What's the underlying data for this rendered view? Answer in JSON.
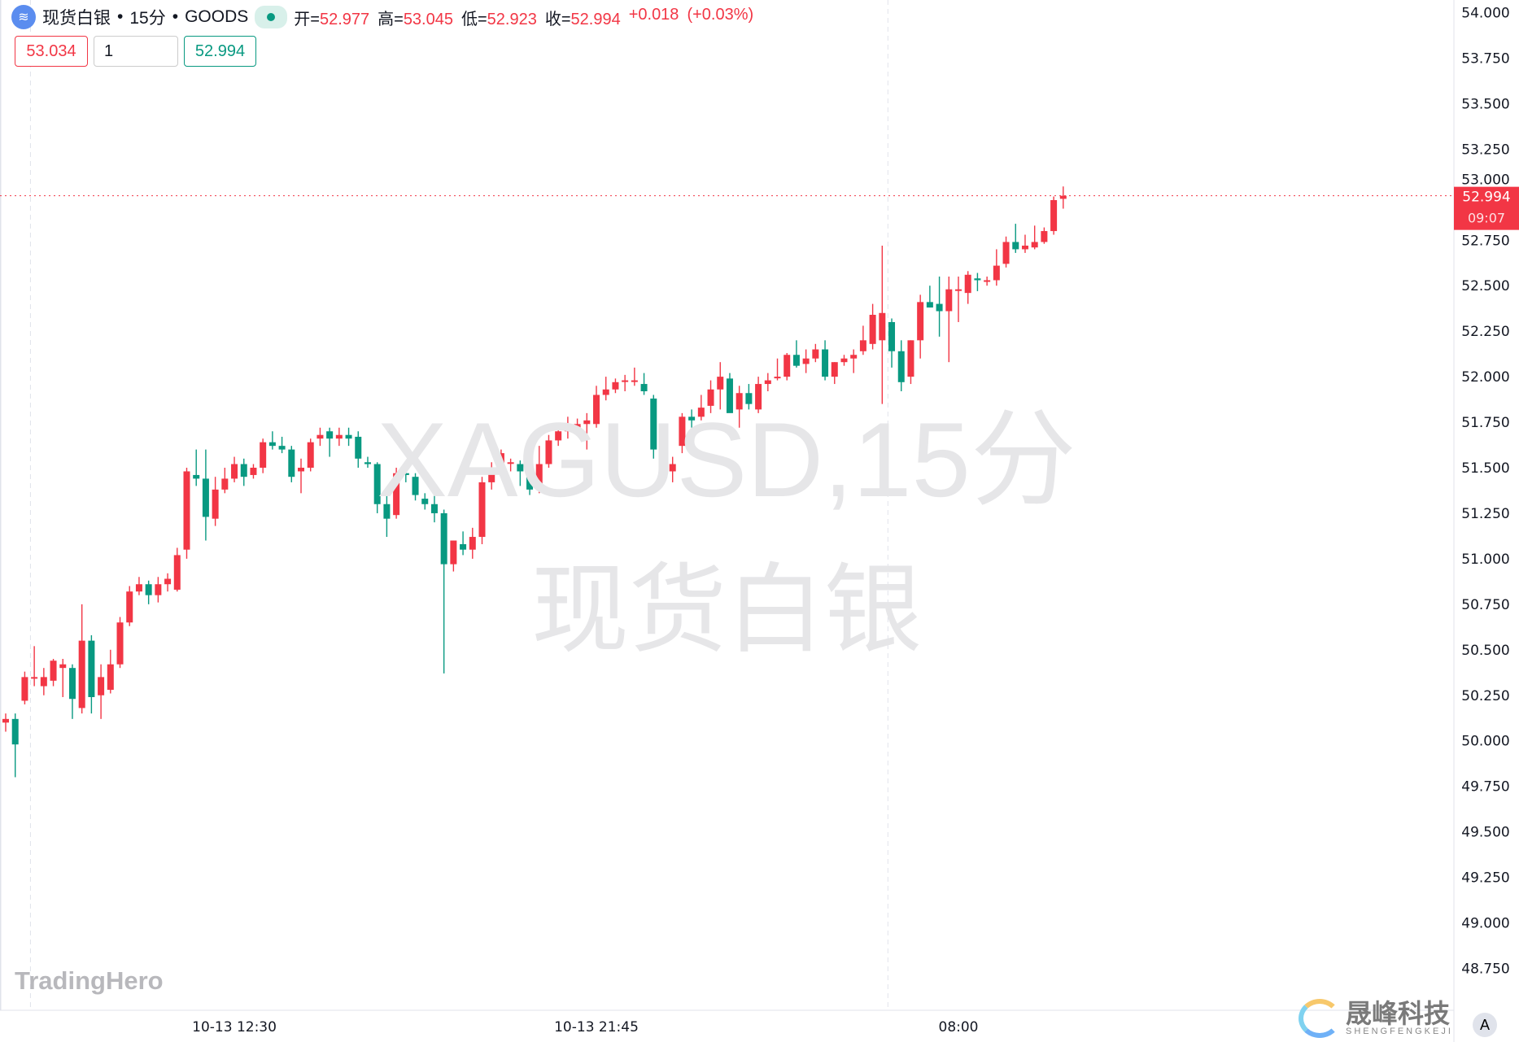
{
  "header": {
    "symbol": "现货白银",
    "interval": "15分",
    "exchange": "GOODS",
    "sep": "•",
    "open_label": "开=",
    "open": "52.977",
    "high_label": "高=",
    "high": "53.045",
    "low_label": "低=",
    "low": "52.923",
    "close_label": "收=",
    "close": "52.994",
    "change": "+0.018",
    "change_pct": "(+0.03%)"
  },
  "trade": {
    "sell": "53.034",
    "qty": "1",
    "buy": "52.994"
  },
  "watermark": {
    "line1": "XAGUSD,15分",
    "line2": "现货白银"
  },
  "logo": "TradingHero",
  "brand": {
    "cn": "晟峰科技",
    "en": "SHENGFENGKEJI"
  },
  "auto_button": "A",
  "colors": {
    "up": "#f23645",
    "down": "#089981"
  },
  "chart_data": {
    "type": "candlestick",
    "ylim": [
      48.6,
      54.0
    ],
    "yticks": [
      "54.000",
      "53.750",
      "53.500",
      "53.250",
      "53.000",
      "52.750",
      "52.500",
      "52.250",
      "52.000",
      "51.750",
      "51.500",
      "51.250",
      "51.000",
      "50.750",
      "50.500",
      "50.250",
      "50.000",
      "49.750",
      "49.500",
      "49.250",
      "49.000",
      "48.750"
    ],
    "xticks": [
      {
        "index": 24,
        "label": "10-13 12:30"
      },
      {
        "index": 62,
        "label": "10-13 21:45"
      },
      {
        "index": 100,
        "label": "08:00"
      }
    ],
    "session_breaks": [
      2,
      92
    ],
    "last_price": {
      "value": "52.994",
      "countdown": "09:07"
    },
    "ohlc": [
      [
        50.1,
        50.15,
        50.05,
        50.12
      ],
      [
        50.12,
        50.15,
        49.8,
        49.98
      ],
      [
        50.22,
        50.38,
        50.2,
        50.35
      ],
      [
        50.35,
        50.52,
        50.3,
        50.35
      ],
      [
        50.3,
        50.4,
        50.25,
        50.35
      ],
      [
        50.33,
        50.45,
        50.3,
        50.44
      ],
      [
        50.4,
        50.45,
        50.24,
        50.42
      ],
      [
        50.4,
        50.42,
        50.12,
        50.23
      ],
      [
        50.18,
        50.75,
        50.15,
        50.55
      ],
      [
        50.55,
        50.58,
        50.15,
        50.24
      ],
      [
        50.25,
        50.42,
        50.12,
        50.35
      ],
      [
        50.28,
        50.5,
        50.26,
        50.42
      ],
      [
        50.42,
        50.68,
        50.4,
        50.65
      ],
      [
        50.65,
        50.85,
        50.63,
        50.82
      ],
      [
        50.82,
        50.9,
        50.8,
        50.86
      ],
      [
        50.86,
        50.88,
        50.75,
        50.8
      ],
      [
        50.8,
        50.9,
        50.76,
        50.86
      ],
      [
        50.86,
        50.92,
        50.82,
        50.89
      ],
      [
        50.83,
        51.06,
        50.82,
        51.02
      ],
      [
        51.05,
        51.5,
        51.0,
        51.48
      ],
      [
        51.46,
        51.6,
        51.4,
        51.44
      ],
      [
        51.44,
        51.6,
        51.1,
        51.23
      ],
      [
        51.22,
        51.45,
        51.18,
        51.38
      ],
      [
        51.38,
        51.5,
        51.36,
        51.44
      ],
      [
        51.44,
        51.56,
        51.42,
        51.52
      ],
      [
        51.52,
        51.55,
        51.4,
        51.45
      ],
      [
        51.46,
        51.52,
        51.44,
        51.5
      ],
      [
        51.5,
        51.66,
        51.47,
        51.64
      ],
      [
        51.64,
        51.7,
        51.6,
        51.62
      ],
      [
        51.62,
        51.67,
        51.58,
        51.6
      ],
      [
        51.6,
        51.62,
        51.42,
        51.45
      ],
      [
        51.48,
        51.55,
        51.36,
        51.5
      ],
      [
        51.5,
        51.66,
        51.48,
        51.64
      ],
      [
        51.66,
        51.72,
        51.62,
        51.68
      ],
      [
        51.7,
        51.72,
        51.56,
        51.66
      ],
      [
        51.66,
        51.72,
        51.62,
        51.68
      ],
      [
        51.68,
        51.72,
        51.62,
        51.66
      ],
      [
        51.67,
        51.7,
        51.5,
        51.55
      ],
      [
        51.53,
        51.56,
        51.5,
        51.52
      ],
      [
        51.52,
        51.53,
        51.25,
        51.3
      ],
      [
        51.3,
        51.35,
        51.12,
        51.22
      ],
      [
        51.24,
        51.5,
        51.22,
        51.47
      ],
      [
        51.47,
        51.5,
        51.42,
        51.46
      ],
      [
        51.45,
        51.47,
        51.32,
        51.35
      ],
      [
        51.33,
        51.36,
        51.27,
        51.3
      ],
      [
        51.3,
        51.36,
        51.2,
        51.25
      ],
      [
        51.25,
        51.27,
        50.37,
        50.97
      ],
      [
        50.97,
        51.1,
        50.93,
        51.1
      ],
      [
        51.08,
        51.15,
        51.02,
        51.05
      ],
      [
        51.05,
        51.17,
        51.0,
        51.12
      ],
      [
        51.12,
        51.45,
        51.08,
        51.42
      ],
      [
        51.42,
        51.53,
        51.38,
        51.5
      ],
      [
        51.5,
        51.6,
        51.45,
        51.58
      ],
      [
        51.53,
        51.55,
        51.48,
        51.53
      ],
      [
        51.52,
        51.54,
        51.4,
        51.48
      ],
      [
        51.5,
        51.55,
        51.35,
        51.38
      ],
      [
        51.38,
        51.62,
        51.36,
        51.52
      ],
      [
        51.52,
        51.68,
        51.5,
        51.65
      ],
      [
        51.65,
        51.73,
        51.62,
        51.7
      ],
      [
        51.7,
        51.78,
        51.66,
        51.72
      ],
      [
        51.72,
        51.77,
        51.68,
        51.74
      ],
      [
        51.74,
        51.8,
        51.6,
        51.76
      ],
      [
        51.74,
        51.95,
        51.72,
        51.9
      ],
      [
        51.9,
        52.0,
        51.87,
        51.93
      ],
      [
        51.93,
        51.99,
        51.91,
        51.97
      ],
      [
        51.98,
        52.01,
        51.92,
        51.98
      ],
      [
        51.98,
        52.05,
        51.95,
        51.98
      ],
      [
        51.96,
        52.02,
        51.9,
        51.92
      ],
      [
        51.88,
        51.9,
        51.55,
        51.6
      ],
      [
        51.6,
        51.62,
        51.45,
        51.5
      ],
      [
        51.48,
        51.56,
        51.42,
        51.52
      ],
      [
        51.62,
        51.8,
        51.58,
        51.78
      ],
      [
        51.78,
        51.82,
        51.72,
        51.76
      ],
      [
        51.78,
        51.9,
        51.76,
        51.83
      ],
      [
        51.84,
        51.98,
        51.8,
        51.93
      ],
      [
        51.93,
        52.08,
        51.82,
        52.0
      ],
      [
        51.99,
        52.02,
        51.84,
        51.8
      ],
      [
        51.82,
        51.95,
        51.72,
        51.91
      ],
      [
        51.91,
        51.96,
        51.82,
        51.85
      ],
      [
        51.82,
        52.0,
        51.8,
        51.96
      ],
      [
        51.96,
        52.02,
        51.92,
        51.98
      ],
      [
        52.0,
        52.1,
        51.98,
        52.0
      ],
      [
        52.0,
        52.13,
        51.98,
        52.12
      ],
      [
        52.12,
        52.2,
        52.05,
        52.06
      ],
      [
        52.07,
        52.15,
        52.02,
        52.1
      ],
      [
        52.1,
        52.18,
        52.08,
        52.15
      ],
      [
        52.15,
        52.2,
        51.98,
        52.0
      ],
      [
        52.0,
        52.08,
        51.96,
        52.08
      ],
      [
        52.08,
        52.12,
        52.06,
        52.1
      ],
      [
        52.1,
        52.15,
        52.02,
        52.12
      ],
      [
        52.14,
        52.28,
        52.12,
        52.2
      ],
      [
        52.18,
        52.4,
        52.15,
        52.34
      ],
      [
        52.2,
        52.72,
        51.85,
        52.35
      ],
      [
        52.3,
        52.32,
        52.05,
        52.14
      ],
      [
        52.14,
        52.2,
        51.92,
        51.97
      ],
      [
        52.0,
        52.2,
        51.96,
        52.2
      ],
      [
        52.2,
        52.45,
        52.1,
        52.41
      ],
      [
        52.41,
        52.5,
        52.38,
        52.38
      ],
      [
        52.4,
        52.55,
        52.22,
        52.36
      ],
      [
        52.36,
        52.55,
        52.08,
        52.48
      ],
      [
        52.48,
        52.55,
        52.3,
        52.48
      ],
      [
        52.46,
        52.58,
        52.4,
        52.56
      ],
      [
        52.54,
        52.57,
        52.47,
        52.53
      ],
      [
        52.53,
        52.55,
        52.5,
        52.53
      ],
      [
        52.53,
        52.7,
        52.5,
        52.61
      ],
      [
        52.62,
        52.77,
        52.6,
        52.74
      ],
      [
        52.74,
        52.84,
        52.68,
        52.7
      ],
      [
        52.7,
        52.78,
        52.68,
        52.72
      ],
      [
        52.71,
        52.83,
        52.7,
        52.74
      ],
      [
        52.74,
        52.82,
        52.73,
        52.8
      ],
      [
        52.8,
        52.99,
        52.78,
        52.97
      ],
      [
        52.977,
        53.045,
        52.923,
        52.994
      ]
    ]
  }
}
